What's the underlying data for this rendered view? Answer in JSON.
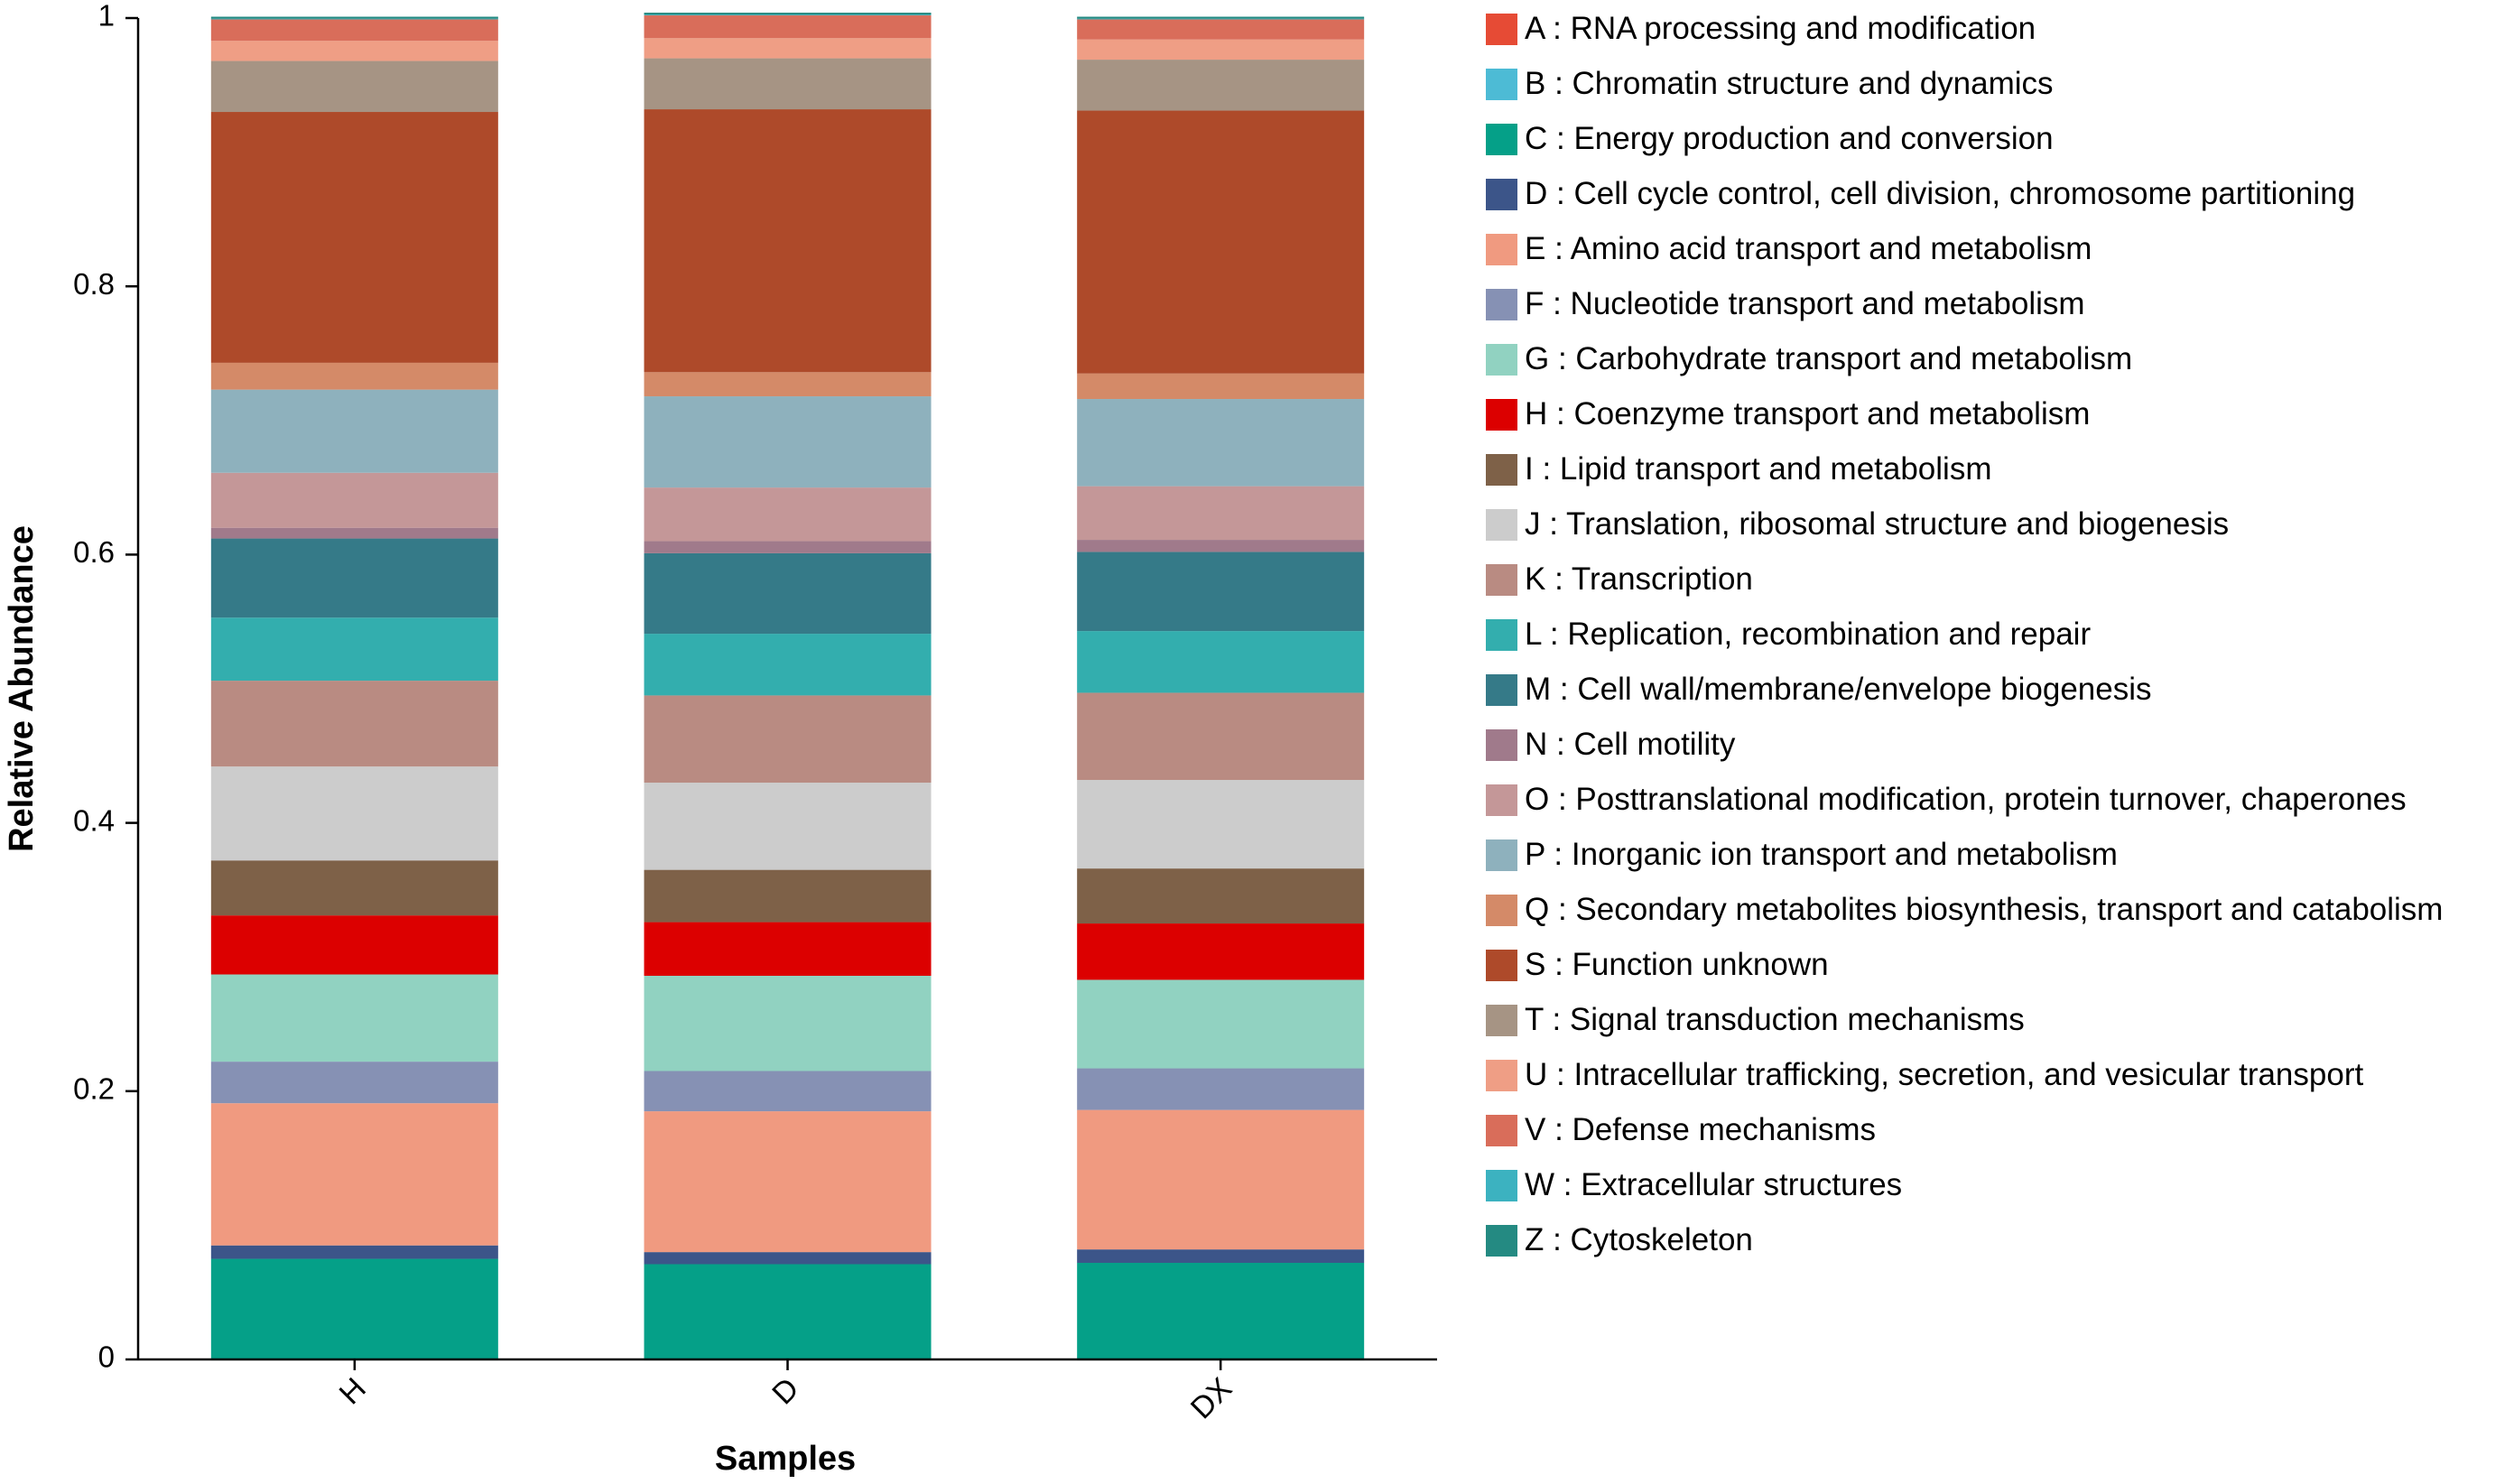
{
  "chart_data": {
    "type": "bar",
    "stacked": true,
    "title": "",
    "xlabel": "Samples",
    "ylabel": "Relative Abundance",
    "ylim": [
      0,
      1
    ],
    "yticks": [
      "0",
      "0.2",
      "0.4",
      "0.6",
      "0.8",
      "1"
    ],
    "ytick_values": [
      0,
      0.2,
      0.4,
      0.6,
      0.8,
      1
    ],
    "categories": [
      "H",
      "D",
      "DX"
    ],
    "legend_position": "right",
    "series": [
      {
        "code": "C",
        "name": "C : Energy production and conversion",
        "color": "#05a088",
        "values": [
          0.075,
          0.071,
          0.072
        ]
      },
      {
        "code": "D",
        "name": "D : Cell cycle control, cell division, chromosome partitioning",
        "color": "#3c5589",
        "values": [
          0.01,
          0.009,
          0.01
        ]
      },
      {
        "code": "E",
        "name": "E : Amino acid transport and metabolism",
        "color": "#f09a80",
        "values": [
          0.106,
          0.105,
          0.104
        ]
      },
      {
        "code": "F",
        "name": "F : Nucleotide transport and metabolism",
        "color": "#8691b4",
        "values": [
          0.031,
          0.03,
          0.031
        ]
      },
      {
        "code": "G",
        "name": "G : Carbohydrate transport and metabolism",
        "color": "#91d2c1",
        "values": [
          0.065,
          0.071,
          0.066
        ]
      },
      {
        "code": "H",
        "name": "H : Coenzyme transport and metabolism",
        "color": "#dc0000",
        "values": [
          0.044,
          0.04,
          0.042
        ]
      },
      {
        "code": "I",
        "name": "I : Lipid transport and metabolism",
        "color": "#7e6148",
        "values": [
          0.041,
          0.039,
          0.041
        ]
      },
      {
        "code": "J",
        "name": "J : Translation, ribosomal structure and biogenesis",
        "color": "#cccccc",
        "values": [
          0.07,
          0.065,
          0.066
        ]
      },
      {
        "code": "K",
        "name": "K : Transcription",
        "color": "#b98b82",
        "values": [
          0.064,
          0.065,
          0.065
        ]
      },
      {
        "code": "L",
        "name": "L : Replication, recombination and repair",
        "color": "#33aeae",
        "values": [
          0.047,
          0.046,
          0.046
        ]
      },
      {
        "code": "M",
        "name": "M : Cell wall/membrane/envelope biogenesis",
        "color": "#357a88",
        "values": [
          0.059,
          0.06,
          0.059
        ]
      },
      {
        "code": "N",
        "name": "N : Cell motility",
        "color": "#a07a8b",
        "values": [
          0.008,
          0.009,
          0.009
        ]
      },
      {
        "code": "O",
        "name": "O : Posttranslational modification, protein turnover, chaperones",
        "color": "#c49798",
        "values": [
          0.041,
          0.04,
          0.04
        ]
      },
      {
        "code": "P",
        "name": "P : Inorganic ion transport and metabolism",
        "color": "#8eb1bd",
        "values": [
          0.062,
          0.068,
          0.065
        ]
      },
      {
        "code": "Q",
        "name": "Q : Secondary metabolites biosynthesis, transport and catabolism",
        "color": "#d48a68",
        "values": [
          0.02,
          0.018,
          0.019
        ]
      },
      {
        "code": "S",
        "name": "S : Function unknown",
        "color": "#ae4a2a",
        "values": [
          0.187,
          0.196,
          0.196
        ]
      },
      {
        "code": "T",
        "name": "T : Signal transduction mechanisms",
        "color": "#a69484",
        "values": [
          0.038,
          0.038,
          0.038
        ]
      },
      {
        "code": "U",
        "name": "U : Intracellular trafficking, secretion, and vesicular transport",
        "color": "#ef9e85",
        "values": [
          0.015,
          0.015,
          0.015
        ]
      },
      {
        "code": "V",
        "name": "V : Defense mechanisms",
        "color": "#d96d5a",
        "values": [
          0.016,
          0.017,
          0.015
        ]
      },
      {
        "code": "W",
        "name": "W : Extracellular structures",
        "color": "#3cb2c0",
        "values": [
          0.0005,
          0.0005,
          0.0005
        ]
      },
      {
        "code": "Z",
        "name": "Z : Cytoskeleton",
        "color": "#248a82",
        "values": [
          0.0015,
          0.0015,
          0.0015
        ]
      }
    ],
    "legend": [
      {
        "code": "A",
        "label": "A : RNA processing and modification",
        "color": "#e64b35"
      },
      {
        "code": "B",
        "label": "B : Chromatin structure and dynamics",
        "color": "#4dbbd5"
      },
      {
        "code": "C",
        "label": "C : Energy production and conversion",
        "color": "#05a088"
      },
      {
        "code": "D",
        "label": "D : Cell cycle control, cell division, chromosome partitioning",
        "color": "#3c5589"
      },
      {
        "code": "E",
        "label": "E : Amino acid transport and metabolism",
        "color": "#f09a80"
      },
      {
        "code": "F",
        "label": "F : Nucleotide transport and metabolism",
        "color": "#8691b4"
      },
      {
        "code": "G",
        "label": "G : Carbohydrate transport and metabolism",
        "color": "#91d2c1"
      },
      {
        "code": "H",
        "label": "H : Coenzyme transport and metabolism",
        "color": "#dc0000"
      },
      {
        "code": "I",
        "label": "I : Lipid transport and metabolism",
        "color": "#7e6148"
      },
      {
        "code": "J",
        "label": "J : Translation, ribosomal structure and biogenesis",
        "color": "#cccccc"
      },
      {
        "code": "K",
        "label": "K : Transcription",
        "color": "#b98b82"
      },
      {
        "code": "L",
        "label": "L : Replication, recombination and repair",
        "color": "#33aeae"
      },
      {
        "code": "M",
        "label": "M : Cell wall/membrane/envelope biogenesis",
        "color": "#357a88"
      },
      {
        "code": "N",
        "label": "N : Cell motility",
        "color": "#a07a8b"
      },
      {
        "code": "O",
        "label": "O : Posttranslational modification, protein turnover, chaperones",
        "color": "#c49798"
      },
      {
        "code": "P",
        "label": "P : Inorganic ion transport and metabolism",
        "color": "#8eb1bd"
      },
      {
        "code": "Q",
        "label": "Q : Secondary metabolites biosynthesis, transport and catabolism",
        "color": "#d48a68"
      },
      {
        "code": "S",
        "label": "S : Function unknown",
        "color": "#ae4a2a"
      },
      {
        "code": "T",
        "label": "T : Signal transduction mechanisms",
        "color": "#a69484"
      },
      {
        "code": "U",
        "label": "U : Intracellular trafficking, secretion, and vesicular transport",
        "color": "#ef9e85"
      },
      {
        "code": "V",
        "label": "V : Defense mechanisms",
        "color": "#d96d5a"
      },
      {
        "code": "W",
        "label": "W : Extracellular structures",
        "color": "#3cb2c0"
      },
      {
        "code": "Z",
        "label": "Z : Cytoskeleton",
        "color": "#248a82"
      }
    ]
  }
}
